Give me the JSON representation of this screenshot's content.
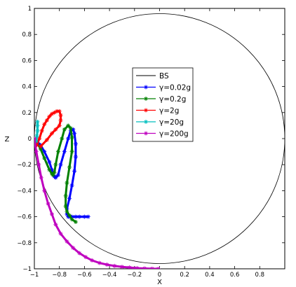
{
  "chart_data": {
    "type": "line",
    "title": "",
    "xlabel": "X",
    "ylabel": "Z",
    "xlim": [
      -1,
      1
    ],
    "ylim": [
      -1,
      1
    ],
    "x_ticks": [
      "−1",
      "−0.8",
      "−0.6",
      "−0.4",
      "−0.2",
      "0",
      "0.2",
      "0.4",
      "0.6",
      "0.8"
    ],
    "x_tick_values": [
      -1,
      -0.8,
      -0.6,
      -0.4,
      -0.2,
      0,
      0.2,
      0.4,
      0.6,
      0.8
    ],
    "y_ticks": [
      "1",
      "0.8",
      "0.6",
      "0.4",
      "0.2",
      "0",
      "−0.2",
      "−0.4",
      "−0.6",
      "−0.8",
      "−1"
    ],
    "y_tick_values": [
      1,
      0.8,
      0.6,
      0.4,
      0.2,
      0,
      -0.2,
      -0.4,
      -0.6,
      -0.8,
      -1
    ],
    "grid": false,
    "legend_position": "center",
    "series": [
      {
        "name": "BS",
        "color": "#000000",
        "marker": "none",
        "x": [],
        "y": []
      },
      {
        "name": "γ=0.02g",
        "color": "#0000ff",
        "marker": "asterisk",
        "x": [
          -1.0,
          -0.98,
          -0.95,
          -0.92,
          -0.88,
          -0.86,
          -0.84,
          -0.83,
          -0.81,
          -0.79,
          -0.76,
          -0.73,
          -0.71,
          -0.69,
          -0.68,
          -0.67,
          -0.67,
          -0.68,
          -0.7,
          -0.72,
          -0.74,
          -0.74,
          -0.73,
          -0.72,
          -0.7,
          -0.67,
          -0.64,
          -0.6,
          -0.57
        ],
        "y": [
          0.0,
          -0.02,
          -0.05,
          -0.1,
          -0.18,
          -0.24,
          -0.29,
          -0.3,
          -0.28,
          -0.2,
          -0.1,
          0.0,
          0.06,
          0.07,
          0.04,
          -0.04,
          -0.14,
          -0.25,
          -0.36,
          -0.46,
          -0.54,
          -0.58,
          -0.6,
          -0.6,
          -0.6,
          -0.6,
          -0.6,
          -0.6,
          -0.6
        ]
      },
      {
        "name": "γ=0.2g",
        "color": "#008000",
        "marker": "asterisk",
        "x": [
          -1.0,
          -0.98,
          -0.95,
          -0.92,
          -0.88,
          -0.86,
          -0.85,
          -0.84,
          -0.83,
          -0.81,
          -0.78,
          -0.76,
          -0.73,
          -0.71,
          -0.7,
          -0.7,
          -0.72,
          -0.74,
          -0.75,
          -0.75,
          -0.74,
          -0.72,
          -0.7,
          -0.67
        ],
        "y": [
          0.0,
          -0.03,
          -0.08,
          -0.15,
          -0.24,
          -0.27,
          -0.28,
          -0.26,
          -0.2,
          -0.1,
          0.0,
          0.07,
          0.1,
          0.08,
          0.01,
          -0.1,
          -0.22,
          -0.34,
          -0.44,
          -0.52,
          -0.56,
          -0.59,
          -0.62,
          -0.64
        ]
      },
      {
        "name": "γ=2g",
        "color": "#ff0000",
        "marker": "asterisk",
        "x": [
          -0.98,
          -0.96,
          -0.94,
          -0.92,
          -0.9,
          -0.88,
          -0.86,
          -0.84,
          -0.82,
          -0.8,
          -0.79,
          -0.79,
          -0.8,
          -0.83,
          -0.86,
          -0.9,
          -0.95
        ],
        "y": [
          -0.05,
          0.0,
          0.06,
          0.11,
          0.14,
          0.17,
          0.19,
          0.2,
          0.21,
          0.21,
          0.18,
          0.14,
          0.1,
          0.07,
          0.04,
          -0.01,
          -0.06
        ]
      },
      {
        "name": "γ=20g",
        "color": "#00bfbf",
        "marker": "asterisk",
        "x": [
          -0.985,
          -0.98,
          -0.975,
          -0.975,
          -0.975
        ],
        "y": [
          -0.02,
          0.02,
          0.06,
          0.1,
          0.13
        ]
      },
      {
        "name": "γ=200g",
        "color": "#bf00bf",
        "marker": "asterisk",
        "x": [
          -1.0,
          -0.985,
          -0.965,
          -0.945,
          -0.92,
          -0.89,
          -0.86,
          -0.83,
          -0.79,
          -0.74,
          -0.69,
          -0.64,
          -0.59,
          -0.54,
          -0.48,
          -0.42,
          -0.36,
          -0.3,
          -0.24,
          -0.18,
          -0.12,
          -0.06,
          -0.01
        ],
        "y": [
          0.0,
          -0.1,
          -0.2,
          -0.3,
          -0.4,
          -0.5,
          -0.58,
          -0.66,
          -0.73,
          -0.79,
          -0.84,
          -0.88,
          -0.91,
          -0.935,
          -0.955,
          -0.968,
          -0.978,
          -0.985,
          -0.99,
          -0.995,
          -0.997,
          -0.999,
          -1.0
        ]
      }
    ]
  }
}
